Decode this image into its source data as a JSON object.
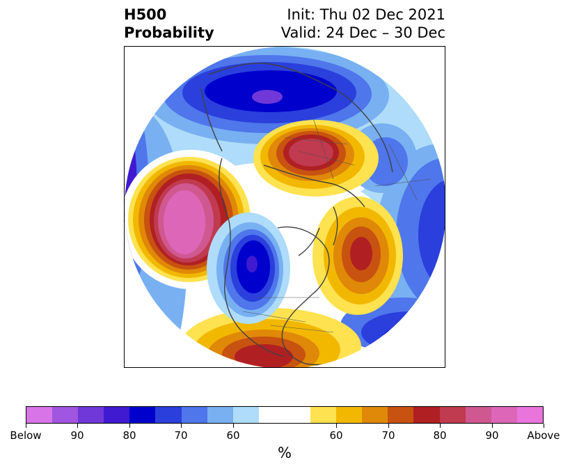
{
  "title": {
    "left_line1": "H500",
    "left_line2": "Probability",
    "right_line1": "Init: Thu 02 Dec 2021",
    "right_line2": "Valid: 24 Dec – 30 Dec"
  },
  "colorbar": {
    "unit": "%",
    "colors": [
      "#d874e8",
      "#a056e0",
      "#7038d8",
      "#3f1ad0",
      "#0000cc",
      "#2a3fdc",
      "#4f76ea",
      "#78b0f2",
      "#aedcfa",
      "#ffffff",
      "#ffffff",
      "#ffe24f",
      "#f2b800",
      "#e08808",
      "#c85210",
      "#b02022",
      "#c03a50",
      "#d05890",
      "#dd66b8",
      "#e874dc"
    ],
    "tick_labels": [
      "Below",
      "90",
      "80",
      "70",
      "60",
      "60",
      "70",
      "80",
      "90",
      "Above"
    ],
    "tick_colors_index": [
      0,
      2,
      4,
      6,
      8,
      12,
      14,
      16,
      18,
      20
    ]
  },
  "map": {
    "projection": "north polar stereographic",
    "below_color": "blue",
    "above_color": "red"
  }
}
